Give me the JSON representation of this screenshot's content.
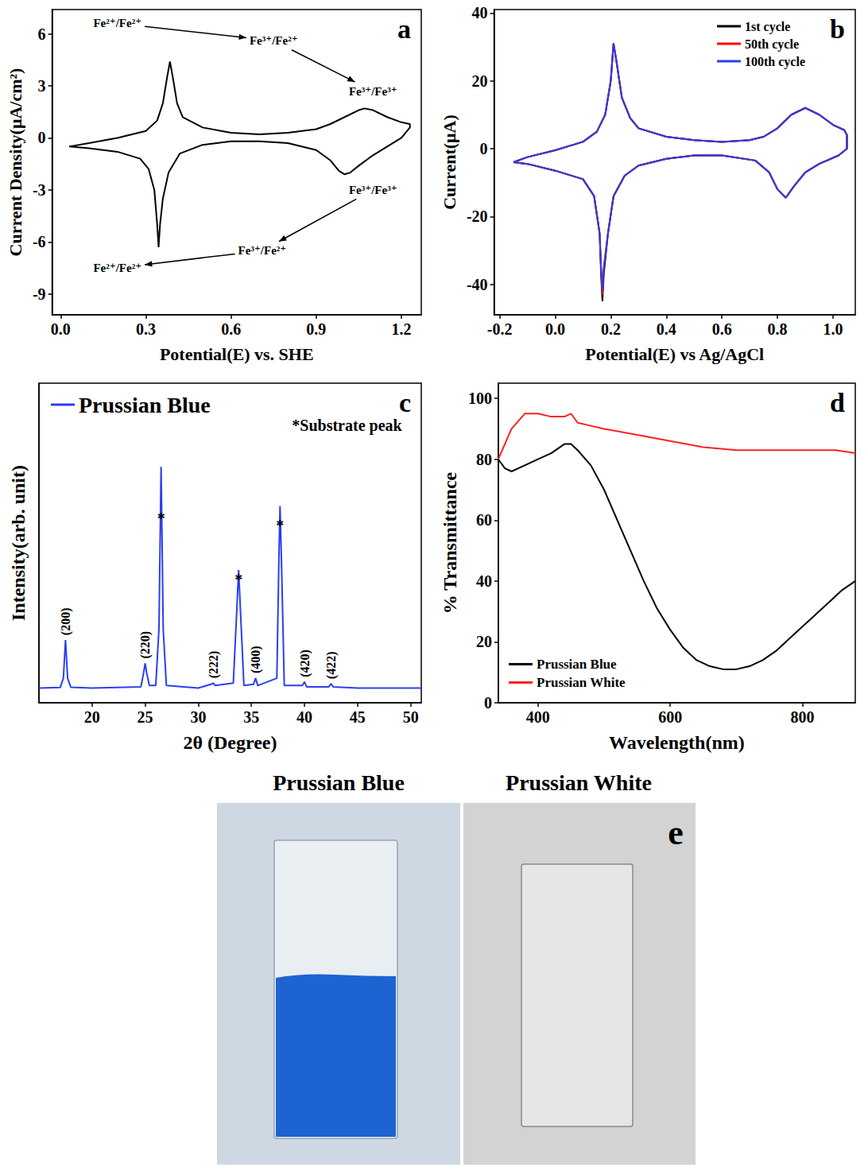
{
  "chart_data": [
    {
      "type": "line",
      "title": "a",
      "x_label": "Potential(E) vs. SHE",
      "y_label": "Current Density(μA/cm²)",
      "xlim": [
        -0.03,
        1.27
      ],
      "ylim": [
        -10.2,
        7.4
      ],
      "xticks": [
        {
          "value": 0,
          "label": "0.0"
        },
        0.3,
        0.6,
        0.9,
        1.2
      ],
      "yticks": [
        -9,
        -6,
        -3,
        0,
        3,
        6
      ],
      "grid": false,
      "series": [
        {
          "color": "#000000",
          "x": [
            0.03,
            0.1,
            0.2,
            0.3,
            0.34,
            0.36,
            0.375,
            0.385,
            0.395,
            0.41,
            0.43,
            0.5,
            0.6,
            0.7,
            0.8,
            0.9,
            0.95,
            1.0,
            1.05,
            1.07,
            1.1,
            1.15,
            1.2,
            1.23,
            1.23,
            1.2,
            1.15,
            1.1,
            1.05,
            1.02,
            1.0,
            0.98,
            0.95,
            0.9,
            0.8,
            0.7,
            0.6,
            0.5,
            0.42,
            0.38,
            0.36,
            0.35,
            0.345,
            0.34,
            0.33,
            0.31,
            0.28,
            0.2,
            0.1,
            0.03
          ],
          "values": [
            -0.5,
            -0.3,
            0.0,
            0.4,
            1.0,
            2.0,
            3.5,
            4.4,
            3.5,
            2.0,
            1.2,
            0.6,
            0.3,
            0.2,
            0.3,
            0.5,
            0.8,
            1.2,
            1.6,
            1.7,
            1.6,
            1.2,
            0.9,
            0.8,
            0.6,
            0.0,
            -0.5,
            -1.0,
            -1.6,
            -2.0,
            -2.1,
            -1.9,
            -1.3,
            -0.7,
            -0.3,
            -0.2,
            -0.2,
            -0.4,
            -0.9,
            -2.0,
            -3.5,
            -5.0,
            -6.3,
            -5.0,
            -3.0,
            -1.8,
            -1.2,
            -0.8,
            -0.6,
            -0.5
          ]
        }
      ],
      "annotations": [
        {
          "text": "Fe²⁺/Fe²⁺",
          "x": 0.2,
          "y": 6.6
        },
        {
          "text": "Fe³⁺/Fe²⁺",
          "x": 0.75,
          "y": 5.6
        },
        {
          "text": "Fe³⁺/Fe³⁺",
          "x": 1.1,
          "y": 2.7
        },
        {
          "text": "Fe³⁺/Fe³⁺",
          "x": 1.1,
          "y": -3.0
        },
        {
          "text": "Fe³⁺/Fe²⁺",
          "x": 0.71,
          "y": -6.5
        },
        {
          "text": "Fe²⁺/Fe²⁺",
          "x": 0.2,
          "y": -7.5
        }
      ]
    },
    {
      "type": "line",
      "title": "b",
      "x_label": "Potential(E) vs Ag/AgCl",
      "y_label": "Current(μA)",
      "xlim": [
        -0.22,
        1.08
      ],
      "ylim": [
        -49,
        41
      ],
      "xticks": [
        -0.2,
        {
          "value": 0,
          "label": "0.0"
        },
        0.2,
        0.4,
        0.6,
        0.8,
        {
          "value": 1,
          "label": "1.0"
        }
      ],
      "yticks": [
        -40,
        -20,
        0,
        20,
        40
      ],
      "grid": false,
      "legend": "upper right",
      "series": [
        {
          "name": "1st cycle",
          "color": "#000000",
          "x": [
            -0.15,
            -0.1,
            0.0,
            0.1,
            0.15,
            0.18,
            0.2,
            0.21,
            0.22,
            0.24,
            0.27,
            0.3,
            0.4,
            0.5,
            0.6,
            0.7,
            0.75,
            0.8,
            0.85,
            0.9,
            0.95,
            1.0,
            1.04,
            1.05,
            1.05,
            1.02,
            0.95,
            0.9,
            0.86,
            0.83,
            0.8,
            0.77,
            0.72,
            0.6,
            0.5,
            0.4,
            0.3,
            0.25,
            0.21,
            0.19,
            0.175,
            0.17,
            0.165,
            0.16,
            0.14,
            0.1,
            0.0,
            -0.1,
            -0.15
          ],
          "values": [
            -4,
            -2.5,
            -0.5,
            2,
            5,
            10,
            20,
            31,
            26,
            15,
            9,
            6,
            3.5,
            2.5,
            2,
            2.5,
            3.5,
            6,
            10,
            12,
            10,
            7,
            5.5,
            4,
            0,
            -2,
            -4.5,
            -7,
            -11,
            -14.5,
            -12,
            -7,
            -3.5,
            -2,
            -2,
            -3,
            -5,
            -8,
            -14,
            -25,
            -37,
            -45,
            -37,
            -25,
            -14,
            -9,
            -6.5,
            -4.5,
            -4
          ]
        },
        {
          "name": "50th cycle",
          "color": "#ff0000",
          "x": [
            -0.15,
            -0.1,
            0.0,
            0.1,
            0.15,
            0.18,
            0.2,
            0.21,
            0.22,
            0.24,
            0.27,
            0.3,
            0.4,
            0.5,
            0.6,
            0.7,
            0.75,
            0.8,
            0.85,
            0.9,
            0.95,
            1.0,
            1.04,
            1.05,
            1.05,
            1.02,
            0.95,
            0.9,
            0.86,
            0.83,
            0.8,
            0.77,
            0.72,
            0.6,
            0.5,
            0.4,
            0.3,
            0.25,
            0.21,
            0.19,
            0.175,
            0.17,
            0.165,
            0.16,
            0.14,
            0.1,
            0.0,
            -0.1,
            -0.15
          ],
          "values": [
            -4,
            -2.5,
            -0.5,
            2,
            5,
            10,
            20,
            31,
            26,
            15,
            9,
            6,
            3.5,
            2.5,
            2,
            2.5,
            3.5,
            6,
            10,
            12,
            10,
            7,
            5.5,
            4,
            0,
            -2,
            -4.5,
            -7,
            -11,
            -14.5,
            -12,
            -7,
            -3.5,
            -2,
            -2,
            -3,
            -5,
            -8,
            -14,
            -25,
            -35,
            -43,
            -35,
            -25,
            -14,
            -9,
            -6.5,
            -4.5,
            -4
          ]
        },
        {
          "name": "100th cycle",
          "color": "#2b3fe6",
          "x": [
            -0.15,
            -0.1,
            0.0,
            0.1,
            0.15,
            0.18,
            0.2,
            0.21,
            0.22,
            0.24,
            0.27,
            0.3,
            0.4,
            0.5,
            0.6,
            0.7,
            0.75,
            0.8,
            0.85,
            0.9,
            0.95,
            1.0,
            1.04,
            1.05,
            1.05,
            1.02,
            0.95,
            0.9,
            0.86,
            0.83,
            0.8,
            0.77,
            0.72,
            0.6,
            0.5,
            0.4,
            0.3,
            0.25,
            0.21,
            0.19,
            0.175,
            0.17,
            0.165,
            0.16,
            0.14,
            0.1,
            0.0,
            -0.1,
            -0.15
          ],
          "values": [
            -4,
            -2.5,
            -0.5,
            2,
            5,
            10,
            20,
            31,
            26,
            15,
            9,
            6,
            3.5,
            2.5,
            2,
            2.5,
            3.5,
            6,
            10,
            12,
            10,
            7,
            5.5,
            4,
            0,
            -2,
            -4.5,
            -7,
            -11,
            -14.5,
            -12,
            -7,
            -3.5,
            -2,
            -2,
            -3,
            -5,
            -8,
            -14,
            -25,
            -35,
            -42,
            -35,
            -25,
            -14,
            -9,
            -6.5,
            -4.5,
            -4
          ]
        }
      ]
    },
    {
      "type": "line",
      "title": "c",
      "x_label": "2θ (Degree)",
      "y_label": "Intensity(arb. unit)",
      "xlim": [
        15,
        51
      ],
      "ylim": [
        0,
        130
      ],
      "xticks": [
        20,
        25,
        30,
        35,
        40,
        45,
        50
      ],
      "tick_labels": "x",
      "grid": false,
      "legend": "upper left",
      "series": [
        {
          "name": "Prussian Blue",
          "color": "#2a3ff0",
          "x": [
            15,
            17.0,
            17.3,
            17.5,
            17.7,
            18.0,
            20,
            24.6,
            24.85,
            25.0,
            25.15,
            25.4,
            26.0,
            26.3,
            26.5,
            26.7,
            27.0,
            30,
            31.2,
            31.4,
            31.6,
            33.3,
            33.6,
            33.8,
            34.0,
            34.3,
            35.2,
            35.4,
            35.6,
            37.4,
            37.6,
            37.7,
            37.85,
            38.1,
            39.8,
            40.0,
            40.2,
            42.3,
            42.5,
            42.7,
            45,
            51
          ],
          "values": [
            6,
            6.2,
            10,
            25.5,
            10,
            6.3,
            6,
            6.5,
            12,
            16,
            12,
            7,
            7,
            30,
            96,
            30,
            7,
            6,
            7.5,
            8,
            7,
            8,
            35,
            54,
            35,
            7,
            7.5,
            10,
            7,
            10,
            60,
            80,
            55,
            7,
            7,
            8.5,
            6.5,
            6.5,
            7.7,
            6.5,
            6,
            6
          ]
        }
      ],
      "peak_labels": [
        {
          "text": "(200)",
          "x": 17.5,
          "y": 25.5
        },
        {
          "text": "(220)",
          "x": 25.0,
          "y": 16
        },
        {
          "text": "(222)",
          "x": 31.4,
          "y": 8
        },
        {
          "text": "(400)",
          "x": 35.4,
          "y": 10
        },
        {
          "text": "(420)",
          "x": 40.0,
          "y": 8.5
        },
        {
          "text": "(422)",
          "x": 42.5,
          "y": 7.7
        }
      ],
      "annotations": [
        {
          "text": "*Substrate peak",
          "x": 44,
          "y": 113
        },
        {
          "text": "*",
          "x": 26.5,
          "y": 75
        },
        {
          "text": "*",
          "x": 33.8,
          "y": 50
        },
        {
          "text": "*",
          "x": 37.7,
          "y": 72
        }
      ]
    },
    {
      "type": "line",
      "title": "d",
      "x_label": "Wavelength(nm)",
      "y_label": "% Transmittance",
      "xlim": [
        340,
        880
      ],
      "ylim": [
        0,
        105
      ],
      "xticks": [
        400,
        600,
        800
      ],
      "yticks": [
        0,
        20,
        40,
        60,
        80,
        100
      ],
      "grid": false,
      "legend": "lower left",
      "series": [
        {
          "name": "Prussian Blue",
          "color": "#000000",
          "x": [
            340,
            350,
            360,
            380,
            400,
            420,
            440,
            450,
            460,
            480,
            500,
            520,
            540,
            560,
            580,
            600,
            620,
            640,
            660,
            680,
            700,
            720,
            740,
            760,
            780,
            800,
            820,
            840,
            860,
            880
          ],
          "values": [
            80,
            77,
            76,
            78,
            80,
            82,
            85,
            85,
            83,
            78,
            70,
            60,
            50,
            40,
            31,
            24,
            18,
            14,
            12,
            11,
            11,
            12,
            14,
            17,
            21,
            25,
            29,
            33,
            37,
            40
          ]
        },
        {
          "name": "Prussian White",
          "color": "#ff2020",
          "x": [
            340,
            360,
            380,
            400,
            420,
            440,
            450,
            460,
            480,
            500,
            550,
            600,
            650,
            700,
            750,
            800,
            850,
            880
          ],
          "values": [
            80,
            90,
            95,
            95,
            94,
            94,
            95,
            92,
            91,
            90,
            88,
            86,
            84,
            83,
            83,
            83,
            83,
            82
          ]
        }
      ]
    }
  ],
  "photos": {
    "panel": "e",
    "captions": [
      "Prussian Blue",
      "Prussian White"
    ]
  }
}
